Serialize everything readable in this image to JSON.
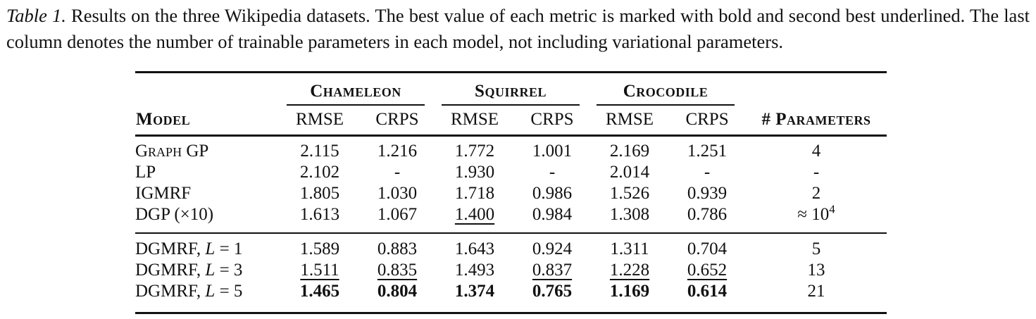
{
  "caption": {
    "label": "Table 1.",
    "text": "Results on the three Wikipedia datasets. The best value of each metric is marked with bold and second best underlined. The last column denotes the number of trainable parameters in each model, not including variational parameters."
  },
  "table": {
    "headers": {
      "model": "Model",
      "groups": [
        "Chameleon",
        "Squirrel",
        "Crocodile"
      ],
      "metrics": [
        "RMSE",
        "CRPS",
        "RMSE",
        "CRPS",
        "RMSE",
        "CRPS"
      ],
      "params": "# Parameters"
    },
    "rows": [
      {
        "model": {
          "text": "Graph GP"
        },
        "cells": [
          {
            "v": "2.115",
            "cls": "num"
          },
          {
            "v": "1.216",
            "cls": "num"
          },
          {
            "v": "1.772",
            "cls": "num"
          },
          {
            "v": "1.001",
            "cls": "num"
          },
          {
            "v": "2.169",
            "cls": "num"
          },
          {
            "v": "1.251",
            "cls": "num"
          }
        ],
        "params": {
          "v": "4",
          "cls": "num"
        }
      },
      {
        "model": {
          "text": "LP"
        },
        "cells": [
          {
            "v": "2.102",
            "cls": "num"
          },
          {
            "v": "-",
            "cls": "num"
          },
          {
            "v": "1.930",
            "cls": "num"
          },
          {
            "v": "-",
            "cls": "num"
          },
          {
            "v": "2.014",
            "cls": "num"
          },
          {
            "v": "-",
            "cls": "num"
          }
        ],
        "params": {
          "v": "-",
          "cls": "num"
        }
      },
      {
        "model": {
          "text": "IGMRF"
        },
        "cells": [
          {
            "v": "1.805",
            "cls": "num"
          },
          {
            "v": "1.030",
            "cls": "num"
          },
          {
            "v": "1.718",
            "cls": "num"
          },
          {
            "v": "0.986",
            "cls": "num"
          },
          {
            "v": "1.526",
            "cls": "num"
          },
          {
            "v": "0.939",
            "cls": "num"
          }
        ],
        "params": {
          "v": "2",
          "cls": "num"
        }
      },
      {
        "model": {
          "text": "DGP (×10)"
        },
        "cells": [
          {
            "v": "1.613",
            "cls": "num"
          },
          {
            "v": "1.067",
            "cls": "num"
          },
          {
            "v": "1.400",
            "cls": "num ul"
          },
          {
            "v": "0.984",
            "cls": "num"
          },
          {
            "v": "1.308",
            "cls": "num"
          },
          {
            "v": "0.786",
            "cls": "num"
          }
        ],
        "params": {
          "v": "≈ 10",
          "sup": "4",
          "cls": "num"
        }
      },
      {
        "model": {
          "text": "DGMRF, ",
          "var": "L",
          "rest": " = 1"
        },
        "cells": [
          {
            "v": "1.589",
            "cls": "num"
          },
          {
            "v": "0.883",
            "cls": "num"
          },
          {
            "v": "1.643",
            "cls": "num"
          },
          {
            "v": "0.924",
            "cls": "num"
          },
          {
            "v": "1.311",
            "cls": "num"
          },
          {
            "v": "0.704",
            "cls": "num"
          }
        ],
        "params": {
          "v": "5",
          "cls": "num"
        }
      },
      {
        "model": {
          "text": "DGMRF, ",
          "var": "L",
          "rest": " = 3"
        },
        "cells": [
          {
            "v": "1.511",
            "cls": "num ul"
          },
          {
            "v": "0.835",
            "cls": "num ul"
          },
          {
            "v": "1.493",
            "cls": "num"
          },
          {
            "v": "0.837",
            "cls": "num ul"
          },
          {
            "v": "1.228",
            "cls": "num ul"
          },
          {
            "v": "0.652",
            "cls": "num ul"
          }
        ],
        "params": {
          "v": "13",
          "cls": "num"
        }
      },
      {
        "model": {
          "text": "DGMRF, ",
          "var": "L",
          "rest": " = 5"
        },
        "cells": [
          {
            "v": "1.465",
            "cls": "num bold"
          },
          {
            "v": "0.804",
            "cls": "num bold"
          },
          {
            "v": "1.374",
            "cls": "num bold"
          },
          {
            "v": "0.765",
            "cls": "num bold"
          },
          {
            "v": "1.169",
            "cls": "num bold"
          },
          {
            "v": "0.614",
            "cls": "num bold"
          }
        ],
        "params": {
          "v": "21",
          "cls": "num"
        }
      }
    ]
  }
}
